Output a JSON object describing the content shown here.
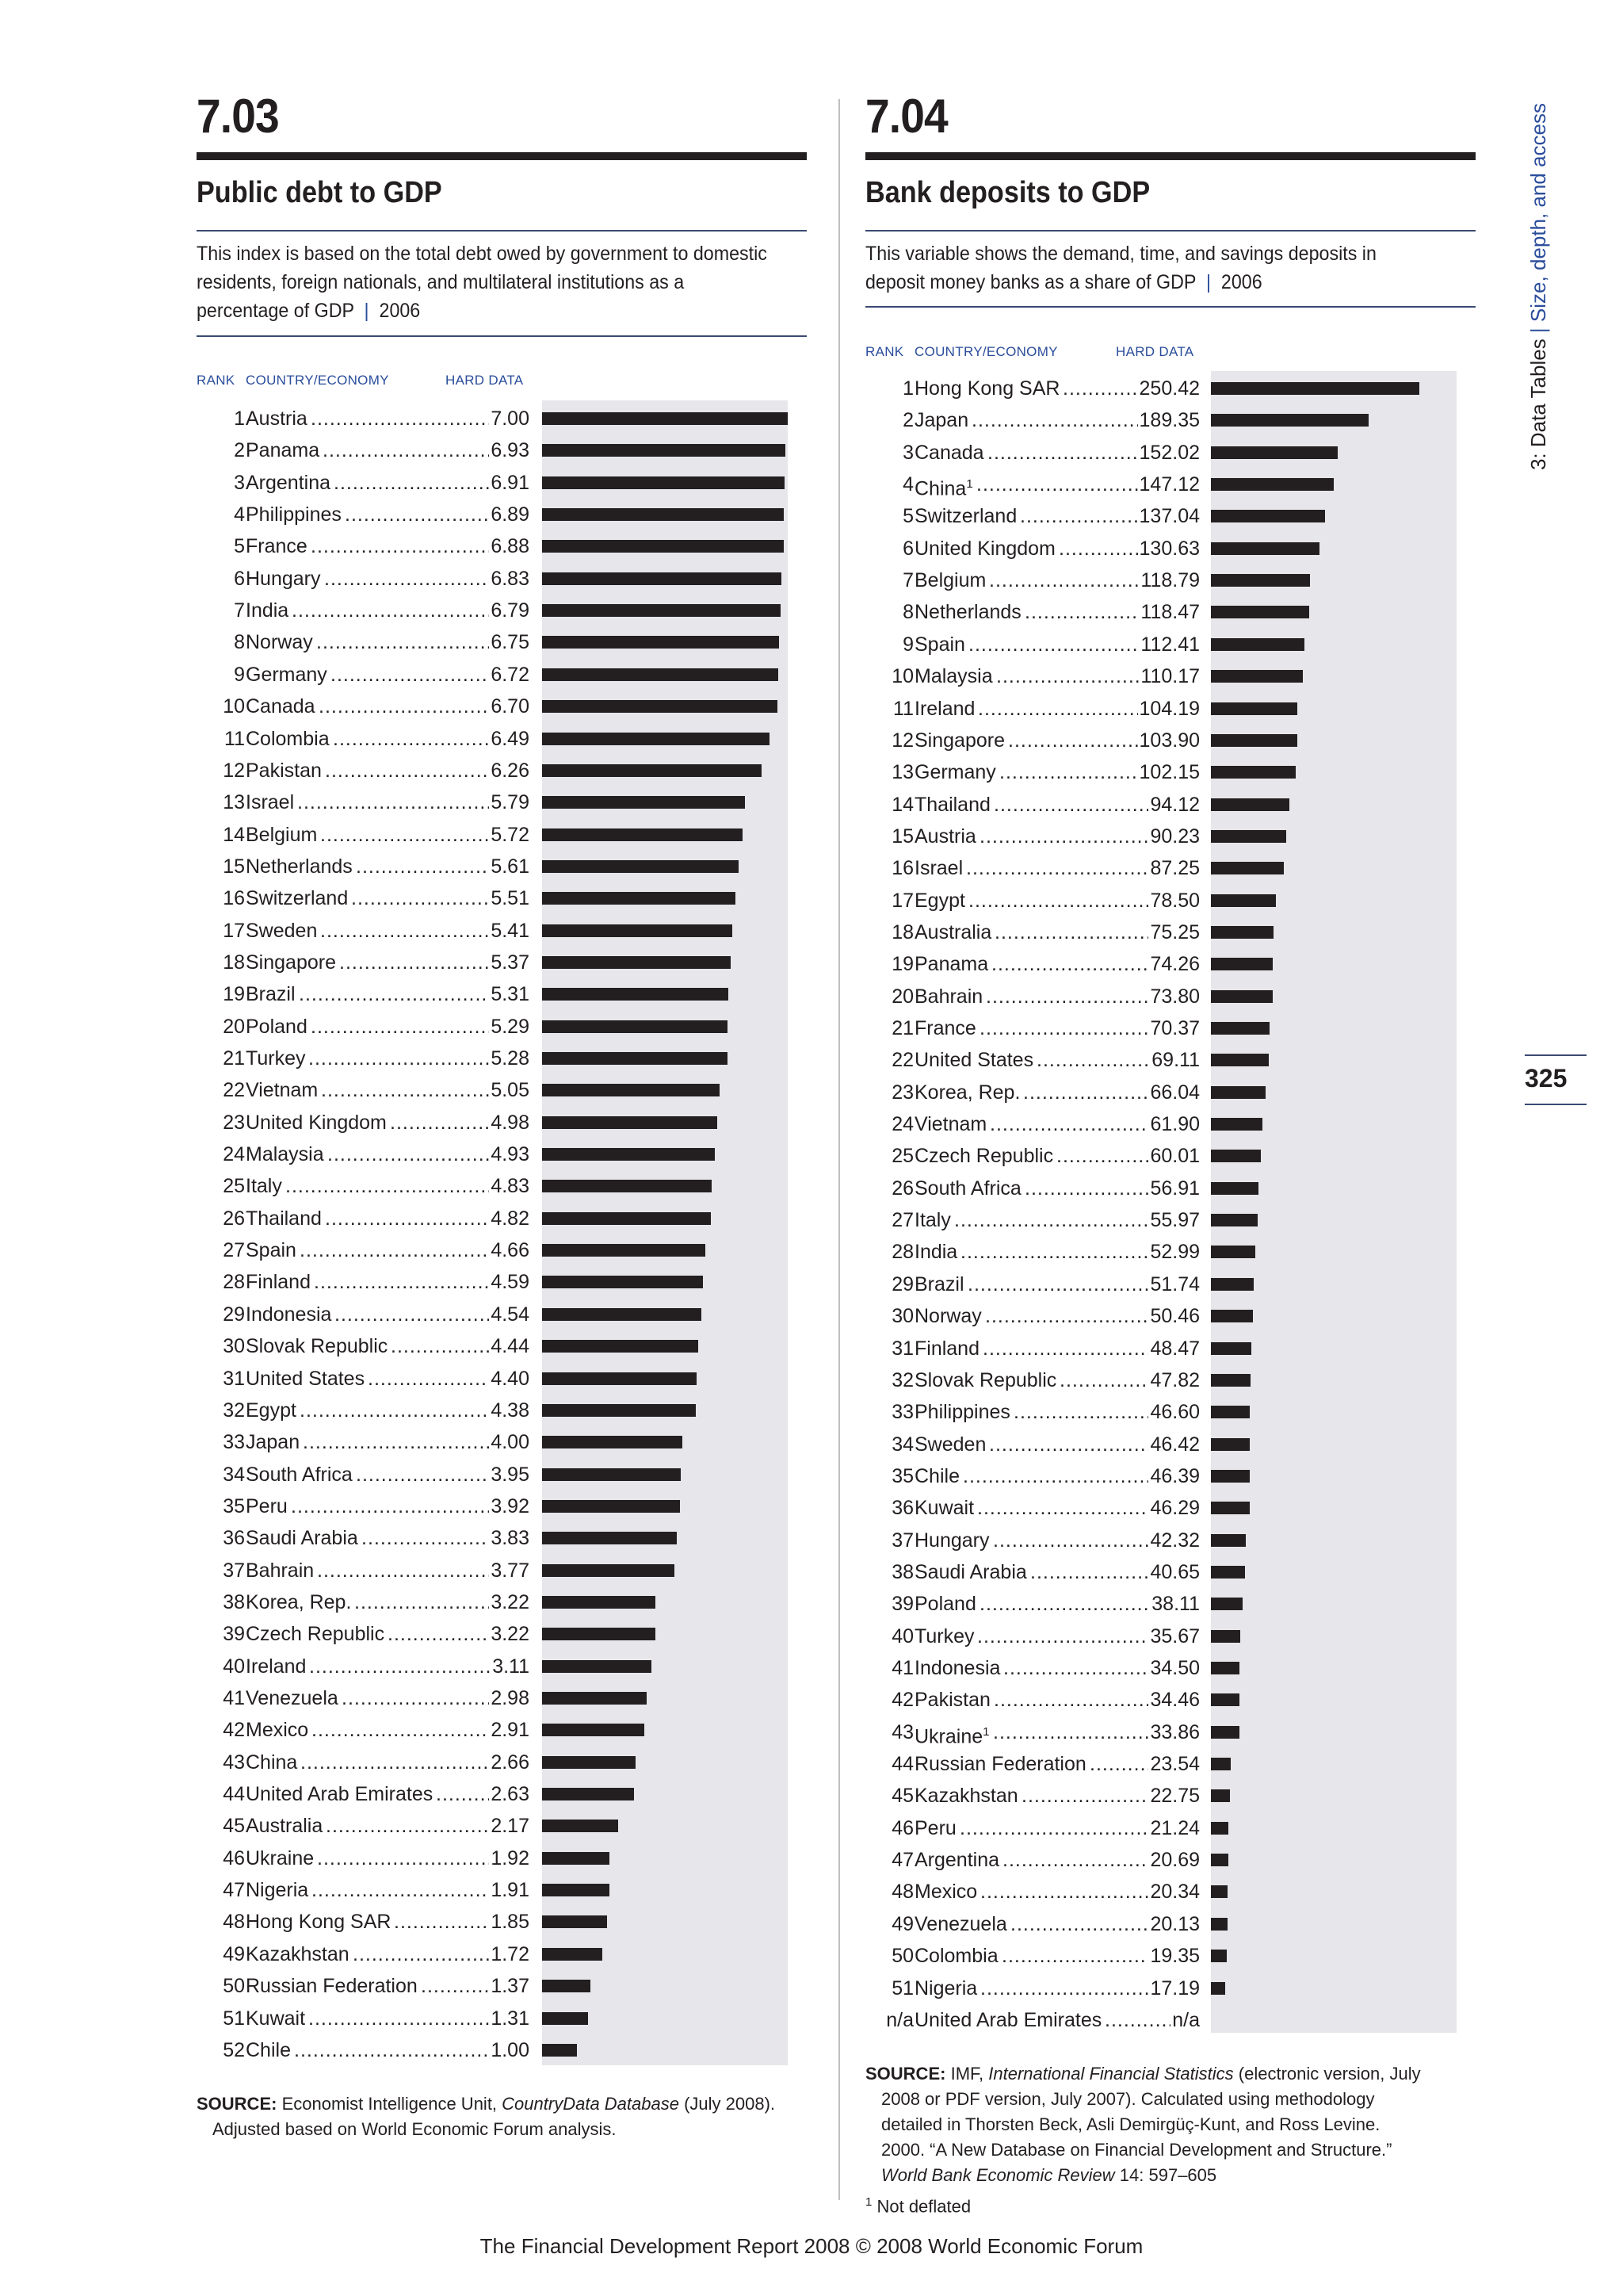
{
  "left": {
    "number": "7.03",
    "title": "Public debt to GDP",
    "description": "This index is based on the total debt owed by government to domestic residents, foreign nationals, and multilateral institutions as a percentage of GDP",
    "year": "2006",
    "headers": {
      "rank": "RANK",
      "country": "COUNTRY/ECONOMY",
      "data": "HARD DATA"
    },
    "source_label": "SOURCE:",
    "source_text_1": "Economist Intelligence Unit,",
    "source_italic": "CountryData Database",
    "source_text_2": "(July 2008).",
    "source_line_2": "Adjusted based on World Economic Forum analysis.",
    "rows": [
      {
        "rank": "1",
        "country": "Austria",
        "value": "7.00",
        "v": 7.0
      },
      {
        "rank": "2",
        "country": "Panama",
        "value": "6.93",
        "v": 6.93
      },
      {
        "rank": "3",
        "country": "Argentina",
        "value": "6.91",
        "v": 6.91
      },
      {
        "rank": "4",
        "country": "Philippines",
        "value": "6.89",
        "v": 6.89
      },
      {
        "rank": "5",
        "country": "France",
        "value": "6.88",
        "v": 6.88
      },
      {
        "rank": "6",
        "country": "Hungary",
        "value": "6.83",
        "v": 6.83
      },
      {
        "rank": "7",
        "country": "India",
        "value": "6.79",
        "v": 6.79
      },
      {
        "rank": "8",
        "country": "Norway",
        "value": "6.75",
        "v": 6.75
      },
      {
        "rank": "9",
        "country": "Germany",
        "value": "6.72",
        "v": 6.72
      },
      {
        "rank": "10",
        "country": "Canada",
        "value": "6.70",
        "v": 6.7
      },
      {
        "rank": "11",
        "country": "Colombia",
        "value": "6.49",
        "v": 6.49
      },
      {
        "rank": "12",
        "country": "Pakistan",
        "value": "6.26",
        "v": 6.26
      },
      {
        "rank": "13",
        "country": "Israel",
        "value": "5.79",
        "v": 5.79
      },
      {
        "rank": "14",
        "country": "Belgium",
        "value": "5.72",
        "v": 5.72
      },
      {
        "rank": "15",
        "country": "Netherlands",
        "value": "5.61",
        "v": 5.61
      },
      {
        "rank": "16",
        "country": "Switzerland",
        "value": "5.51",
        "v": 5.51
      },
      {
        "rank": "17",
        "country": "Sweden",
        "value": "5.41",
        "v": 5.41
      },
      {
        "rank": "18",
        "country": "Singapore",
        "value": "5.37",
        "v": 5.37
      },
      {
        "rank": "19",
        "country": "Brazil",
        "value": "5.31",
        "v": 5.31
      },
      {
        "rank": "20",
        "country": "Poland",
        "value": "5.29",
        "v": 5.29
      },
      {
        "rank": "21",
        "country": "Turkey",
        "value": "5.28",
        "v": 5.28
      },
      {
        "rank": "22",
        "country": "Vietnam",
        "value": "5.05",
        "v": 5.05
      },
      {
        "rank": "23",
        "country": "United Kingdom",
        "value": "4.98",
        "v": 4.98
      },
      {
        "rank": "24",
        "country": "Malaysia",
        "value": "4.93",
        "v": 4.93
      },
      {
        "rank": "25",
        "country": "Italy",
        "value": "4.83",
        "v": 4.83
      },
      {
        "rank": "26",
        "country": "Thailand",
        "value": "4.82",
        "v": 4.82
      },
      {
        "rank": "27",
        "country": "Spain",
        "value": "4.66",
        "v": 4.66
      },
      {
        "rank": "28",
        "country": "Finland",
        "value": "4.59",
        "v": 4.59
      },
      {
        "rank": "29",
        "country": "Indonesia",
        "value": "4.54",
        "v": 4.54
      },
      {
        "rank": "30",
        "country": "Slovak Republic",
        "value": "4.44",
        "v": 4.44
      },
      {
        "rank": "31",
        "country": "United States",
        "value": "4.40",
        "v": 4.4
      },
      {
        "rank": "32",
        "country": "Egypt",
        "value": "4.38",
        "v": 4.38
      },
      {
        "rank": "33",
        "country": "Japan",
        "value": "4.00",
        "v": 4.0
      },
      {
        "rank": "34",
        "country": "South Africa",
        "value": "3.95",
        "v": 3.95
      },
      {
        "rank": "35",
        "country": "Peru",
        "value": "3.92",
        "v": 3.92
      },
      {
        "rank": "36",
        "country": "Saudi Arabia",
        "value": "3.83",
        "v": 3.83
      },
      {
        "rank": "37",
        "country": "Bahrain",
        "value": "3.77",
        "v": 3.77
      },
      {
        "rank": "38",
        "country": "Korea, Rep.",
        "value": "3.22",
        "v": 3.22
      },
      {
        "rank": "39",
        "country": "Czech Republic",
        "value": "3.22",
        "v": 3.22
      },
      {
        "rank": "40",
        "country": "Ireland",
        "value": "3.11",
        "v": 3.11
      },
      {
        "rank": "41",
        "country": "Venezuela",
        "value": "2.98",
        "v": 2.98
      },
      {
        "rank": "42",
        "country": "Mexico",
        "value": "2.91",
        "v": 2.91
      },
      {
        "rank": "43",
        "country": "China",
        "value": "2.66",
        "v": 2.66
      },
      {
        "rank": "44",
        "country": "United Arab Emirates",
        "value": "2.63",
        "v": 2.63
      },
      {
        "rank": "45",
        "country": "Australia",
        "value": "2.17",
        "v": 2.17
      },
      {
        "rank": "46",
        "country": "Ukraine",
        "value": "1.92",
        "v": 1.92
      },
      {
        "rank": "47",
        "country": "Nigeria",
        "value": "1.91",
        "v": 1.91
      },
      {
        "rank": "48",
        "country": "Hong Kong SAR",
        "value": "1.85",
        "v": 1.85
      },
      {
        "rank": "49",
        "country": "Kazakhstan",
        "value": "1.72",
        "v": 1.72
      },
      {
        "rank": "50",
        "country": "Russian Federation",
        "value": "1.37",
        "v": 1.37
      },
      {
        "rank": "51",
        "country": "Kuwait",
        "value": "1.31",
        "v": 1.31
      },
      {
        "rank": "52",
        "country": "Chile",
        "value": "1.00",
        "v": 1.0
      }
    ]
  },
  "right": {
    "number": "7.04",
    "title": "Bank deposits to GDP",
    "description": "This variable shows the demand, time, and savings deposits in deposit money banks as a share of GDP",
    "year": "2006",
    "headers": {
      "rank": "RANK",
      "country": "COUNTRY/ECONOMY",
      "data": "HARD DATA"
    },
    "source_label": "SOURCE:",
    "source_text_1": "IMF,",
    "source_italic": "International Financial Statistics",
    "source_text_2": "(electronic version, July",
    "source_line_2": "2008 or PDF version, July 2007). Calculated using methodology",
    "source_line_3": "detailed in Thorsten Beck, Asli Demirgüç-Kunt, and Ross Levine.",
    "source_line_4": "2000. “A New Database on Financial Development and Structure.”",
    "source_line_5_italic": "World Bank Economic Review",
    "source_line_5": "14: 597–605",
    "footnote_mark": "1",
    "footnote_text": "Not deflated",
    "rows": [
      {
        "rank": "1",
        "country": "Hong Kong SAR",
        "value": "250.42",
        "v": 250.42
      },
      {
        "rank": "2",
        "country": "Japan",
        "value": "189.35",
        "v": 189.35
      },
      {
        "rank": "3",
        "country": "Canada",
        "value": "152.02",
        "v": 152.02
      },
      {
        "rank": "4",
        "country": "China",
        "sup": "1",
        "value": "147.12",
        "v": 147.12
      },
      {
        "rank": "5",
        "country": "Switzerland",
        "value": "137.04",
        "v": 137.04
      },
      {
        "rank": "6",
        "country": "United Kingdom",
        "value": "130.63",
        "v": 130.63
      },
      {
        "rank": "7",
        "country": "Belgium",
        "value": "118.79",
        "v": 118.79
      },
      {
        "rank": "8",
        "country": "Netherlands",
        "value": "118.47",
        "v": 118.47
      },
      {
        "rank": "9",
        "country": "Spain",
        "value": "112.41",
        "v": 112.41
      },
      {
        "rank": "10",
        "country": "Malaysia",
        "value": "110.17",
        "v": 110.17
      },
      {
        "rank": "11",
        "country": "Ireland",
        "value": "104.19",
        "v": 104.19
      },
      {
        "rank": "12",
        "country": "Singapore",
        "value": "103.90",
        "v": 103.9
      },
      {
        "rank": "13",
        "country": "Germany",
        "value": "102.15",
        "v": 102.15
      },
      {
        "rank": "14",
        "country": "Thailand",
        "value": "94.12",
        "v": 94.12
      },
      {
        "rank": "15",
        "country": "Austria",
        "value": "90.23",
        "v": 90.23
      },
      {
        "rank": "16",
        "country": "Israel",
        "value": "87.25",
        "v": 87.25
      },
      {
        "rank": "17",
        "country": "Egypt",
        "value": "78.50",
        "v": 78.5
      },
      {
        "rank": "18",
        "country": "Australia",
        "value": "75.25",
        "v": 75.25
      },
      {
        "rank": "19",
        "country": "Panama",
        "value": "74.26",
        "v": 74.26
      },
      {
        "rank": "20",
        "country": "Bahrain",
        "value": "73.80",
        "v": 73.8
      },
      {
        "rank": "21",
        "country": "France",
        "value": "70.37",
        "v": 70.37
      },
      {
        "rank": "22",
        "country": "United States",
        "value": "69.11",
        "v": 69.11
      },
      {
        "rank": "23",
        "country": "Korea, Rep.",
        "value": "66.04",
        "v": 66.04
      },
      {
        "rank": "24",
        "country": "Vietnam",
        "value": "61.90",
        "v": 61.9
      },
      {
        "rank": "25",
        "country": "Czech Republic",
        "value": "60.01",
        "v": 60.01
      },
      {
        "rank": "26",
        "country": "South Africa",
        "value": "56.91",
        "v": 56.91
      },
      {
        "rank": "27",
        "country": "Italy",
        "value": "55.97",
        "v": 55.97
      },
      {
        "rank": "28",
        "country": "India",
        "value": "52.99",
        "v": 52.99
      },
      {
        "rank": "29",
        "country": "Brazil",
        "value": "51.74",
        "v": 51.74
      },
      {
        "rank": "30",
        "country": "Norway",
        "value": "50.46",
        "v": 50.46
      },
      {
        "rank": "31",
        "country": "Finland",
        "value": "48.47",
        "v": 48.47
      },
      {
        "rank": "32",
        "country": "Slovak Republic",
        "value": "47.82",
        "v": 47.82
      },
      {
        "rank": "33",
        "country": "Philippines",
        "value": "46.60",
        "v": 46.6
      },
      {
        "rank": "34",
        "country": "Sweden",
        "value": "46.42",
        "v": 46.42
      },
      {
        "rank": "35",
        "country": "Chile",
        "value": "46.39",
        "v": 46.39
      },
      {
        "rank": "36",
        "country": "Kuwait",
        "value": "46.29",
        "v": 46.29
      },
      {
        "rank": "37",
        "country": "Hungary",
        "value": "42.32",
        "v": 42.32
      },
      {
        "rank": "38",
        "country": "Saudi Arabia",
        "value": "40.65",
        "v": 40.65
      },
      {
        "rank": "39",
        "country": "Poland",
        "value": "38.11",
        "v": 38.11
      },
      {
        "rank": "40",
        "country": "Turkey",
        "value": "35.67",
        "v": 35.67
      },
      {
        "rank": "41",
        "country": "Indonesia",
        "value": "34.50",
        "v": 34.5
      },
      {
        "rank": "42",
        "country": "Pakistan",
        "value": "34.46",
        "v": 34.46
      },
      {
        "rank": "43",
        "country": "Ukraine",
        "sup": "1",
        "value": "33.86",
        "v": 33.86
      },
      {
        "rank": "44",
        "country": "Russian Federation",
        "value": "23.54",
        "v": 23.54
      },
      {
        "rank": "45",
        "country": "Kazakhstan",
        "value": "22.75",
        "v": 22.75
      },
      {
        "rank": "46",
        "country": "Peru",
        "value": "21.24",
        "v": 21.24
      },
      {
        "rank": "47",
        "country": "Argentina",
        "value": "20.69",
        "v": 20.69
      },
      {
        "rank": "48",
        "country": "Mexico",
        "value": "20.34",
        "v": 20.34
      },
      {
        "rank": "49",
        "country": "Venezuela",
        "value": "20.13",
        "v": 20.13
      },
      {
        "rank": "50",
        "country": "Colombia",
        "value": "19.35",
        "v": 19.35
      },
      {
        "rank": "51",
        "country": "Nigeria",
        "value": "17.19",
        "v": 17.19
      },
      {
        "rank": "n/a",
        "country": "United Arab Emirates",
        "value": "n/a",
        "v": 0
      }
    ]
  },
  "sidebar": {
    "section": "3: Data Tables",
    "separator": "|",
    "subsection": "Size, depth, and access"
  },
  "page_number": "325",
  "footer": "The Financial Development Report 2008 © 2008 World Economic Forum"
}
